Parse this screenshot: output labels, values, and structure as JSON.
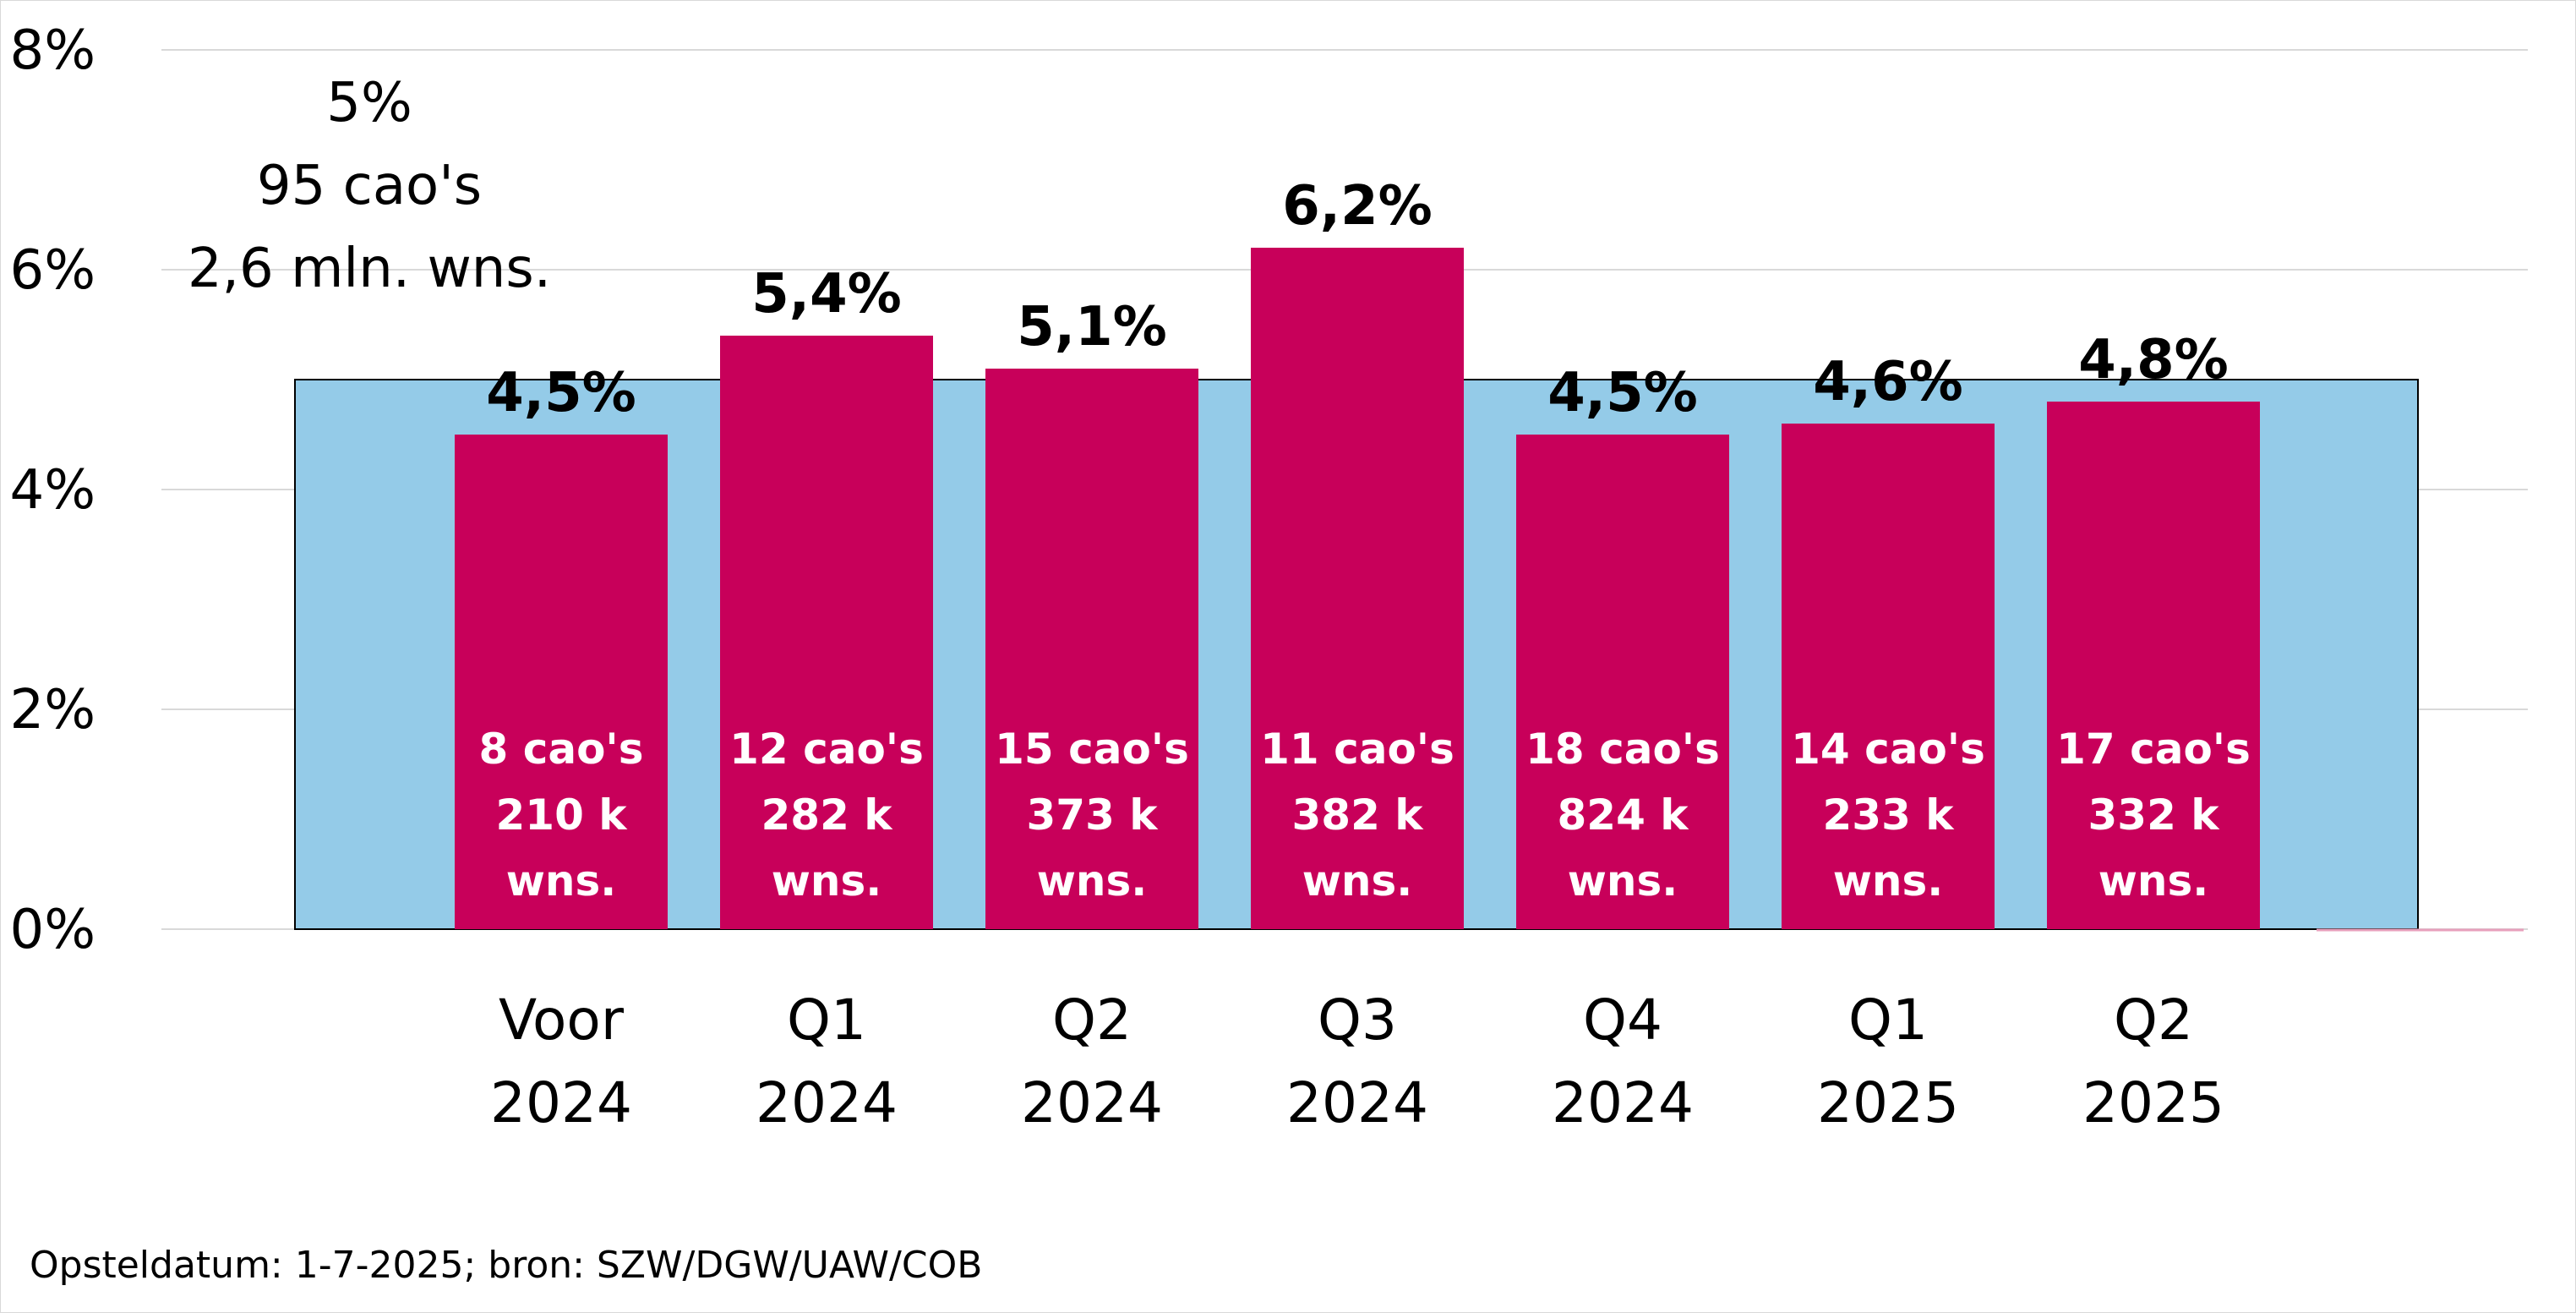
{
  "chart_data": {
    "type": "bar",
    "categories": [
      [
        "Voor",
        "2024"
      ],
      [
        "Q1",
        "2024"
      ],
      [
        "Q2",
        "2024"
      ],
      [
        "Q3",
        "2024"
      ],
      [
        "Q4",
        "2024"
      ],
      [
        "Q1",
        "2025"
      ],
      [
        "Q2",
        "2025"
      ]
    ],
    "values": [
      4.5,
      5.4,
      5.1,
      6.2,
      4.5,
      4.6,
      4.8
    ],
    "value_labels": [
      "4,5%",
      "5,4%",
      "5,1%",
      "6,2%",
      "4,5%",
      "4,6%",
      "4,8%"
    ],
    "bar_annotations": [
      [
        "8 cao's",
        "210 k",
        "wns."
      ],
      [
        "12 cao's",
        "282 k",
        "wns."
      ],
      [
        "15 cao's",
        "373 k",
        "wns."
      ],
      [
        "11 cao's",
        "382 k",
        "wns."
      ],
      [
        "18 cao's",
        "824 k",
        "wns."
      ],
      [
        "14 cao's",
        "233 k",
        "wns."
      ],
      [
        "17 cao's",
        "332 k",
        "wns."
      ]
    ],
    "benchmark": {
      "value": 5.0,
      "label_lines": [
        "5%",
        "95 cao's",
        "2,6 mln. wns."
      ]
    },
    "ylim": [
      0,
      8
    ],
    "y_ticks": [
      0,
      2,
      4,
      6,
      8
    ],
    "y_tick_labels": [
      "0%",
      "2%",
      "4%",
      "6%",
      "8%"
    ],
    "grid": true,
    "legend": "none",
    "colors": {
      "bar": "#C8005A",
      "benchmark_area": "#94CBE8",
      "grid": "#d9d9d9"
    }
  },
  "footnote": "Opsteldatum: 1-7-2025; bron: SZW/DGW/UAW/COB"
}
